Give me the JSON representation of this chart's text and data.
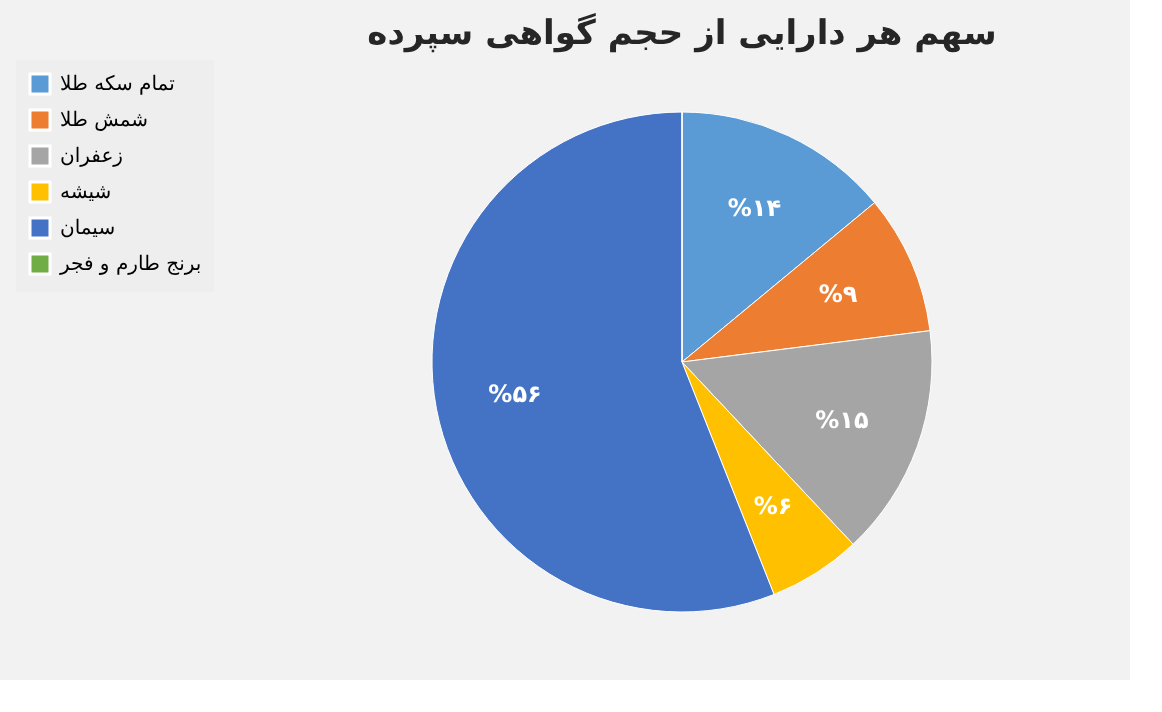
{
  "chart_data": {
    "type": "pie",
    "title": "سهم هر دارایی از حجم گواهی سپرده",
    "categories": [
      "تمام سکه طلا",
      "شمش طلا",
      "زعفران",
      "شیشه",
      "سیمان",
      "برنج طارم و فجر"
    ],
    "values": [
      14,
      9,
      15,
      6,
      56,
      0
    ],
    "colors": [
      "#5b9bd5",
      "#ed7d31",
      "#a5a5a5",
      "#ffc000",
      "#4472c4",
      "#70ad47"
    ],
    "value_labels": [
      "%۱۴",
      "%۹",
      "%۱۵",
      "%۶",
      "%۵۶",
      null
    ],
    "legend": "left"
  }
}
